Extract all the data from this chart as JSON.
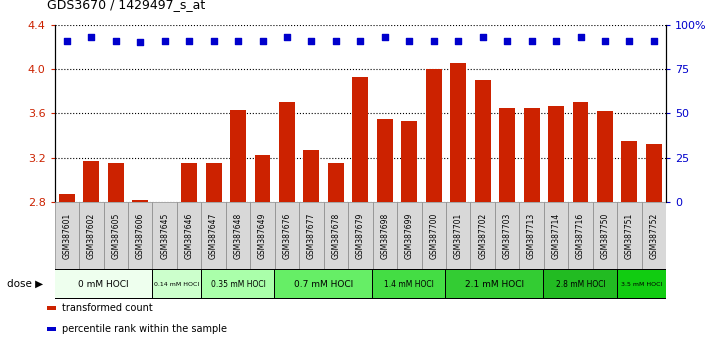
{
  "title": "GDS3670 / 1429497_s_at",
  "samples": [
    "GSM387601",
    "GSM387602",
    "GSM387605",
    "GSM387606",
    "GSM387645",
    "GSM387646",
    "GSM387647",
    "GSM387648",
    "GSM387649",
    "GSM387676",
    "GSM387677",
    "GSM387678",
    "GSM387679",
    "GSM387698",
    "GSM387699",
    "GSM387700",
    "GSM387701",
    "GSM387702",
    "GSM387703",
    "GSM387713",
    "GSM387714",
    "GSM387716",
    "GSM387750",
    "GSM387751",
    "GSM387752"
  ],
  "bar_values": [
    2.87,
    3.17,
    3.15,
    2.82,
    2.8,
    3.15,
    3.15,
    3.63,
    3.22,
    3.7,
    3.27,
    3.15,
    3.93,
    3.55,
    3.53,
    4.0,
    4.05,
    3.9,
    3.65,
    3.65,
    3.67,
    3.7,
    3.62,
    3.35,
    3.32
  ],
  "dot_values": [
    91,
    93,
    91,
    90,
    91,
    91,
    91,
    91,
    91,
    93,
    91,
    91,
    91,
    93,
    91,
    91,
    91,
    93,
    91,
    91,
    91,
    93,
    91,
    91,
    91
  ],
  "groups": [
    {
      "label": "0 mM HOCl",
      "start": 0,
      "end": 4,
      "color": "#eeffee"
    },
    {
      "label": "0.14 mM HOCl",
      "start": 4,
      "end": 6,
      "color": "#ccffcc"
    },
    {
      "label": "0.35 mM HOCl",
      "start": 6,
      "end": 9,
      "color": "#aaffaa"
    },
    {
      "label": "0.7 mM HOCl",
      "start": 9,
      "end": 13,
      "color": "#66ee66"
    },
    {
      "label": "1.4 mM HOCl",
      "start": 13,
      "end": 16,
      "color": "#44dd44"
    },
    {
      "label": "2.1 mM HOCl",
      "start": 16,
      "end": 20,
      "color": "#33cc33"
    },
    {
      "label": "2.8 mM HOCl",
      "start": 20,
      "end": 23,
      "color": "#22bb22"
    },
    {
      "label": "3.5 mM HOCl",
      "start": 23,
      "end": 25,
      "color": "#11cc11"
    }
  ],
  "ylim_left": [
    2.8,
    4.4
  ],
  "ylim_right": [
    0,
    100
  ],
  "yticks_left": [
    2.8,
    3.2,
    3.6,
    4.0,
    4.4
  ],
  "yticks_right": [
    0,
    25,
    50,
    75,
    100
  ],
  "bar_color": "#cc2200",
  "dot_color": "#0000cc",
  "legend_items": [
    "transformed count",
    "percentile rank within the sample"
  ],
  "sample_label_bg": "#d0d0d0",
  "sample_label_border": "#888888"
}
